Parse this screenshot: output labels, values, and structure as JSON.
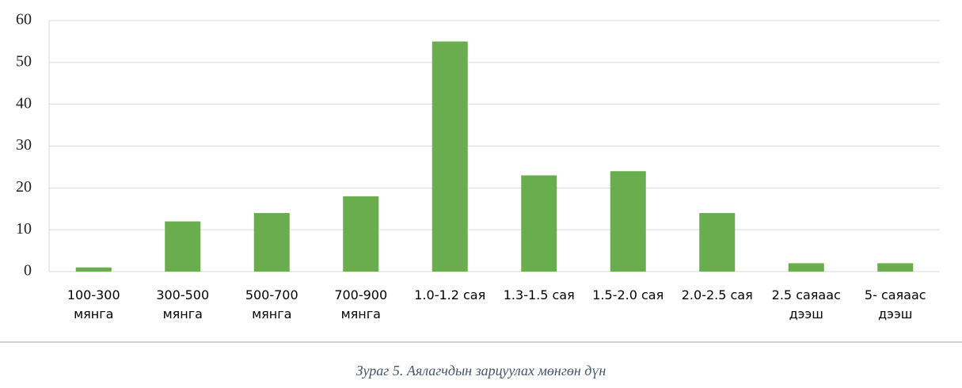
{
  "chart_data": {
    "type": "bar",
    "categories": [
      "100-300\nмянга",
      "300-500\nмянга",
      "500-700\nмянга",
      "700-900\nмянга",
      "1.0-1.2 сая",
      "1.3-1.5 сая",
      "1.5-2.0 сая",
      "2.0-2.5 сая",
      "2.5 саяаас\nдээш",
      "5- саяаас\nдээш"
    ],
    "values": [
      1,
      12,
      14,
      18,
      55,
      23,
      24,
      14,
      2,
      2
    ],
    "color": "#6aad4e",
    "ylim": [
      0,
      60
    ],
    "yticks": [
      0,
      10,
      20,
      30,
      40,
      50,
      60
    ],
    "grid": true
  },
  "caption": "Зураг 5. Аялагчдын зарцуулах мөнгөн дүн"
}
